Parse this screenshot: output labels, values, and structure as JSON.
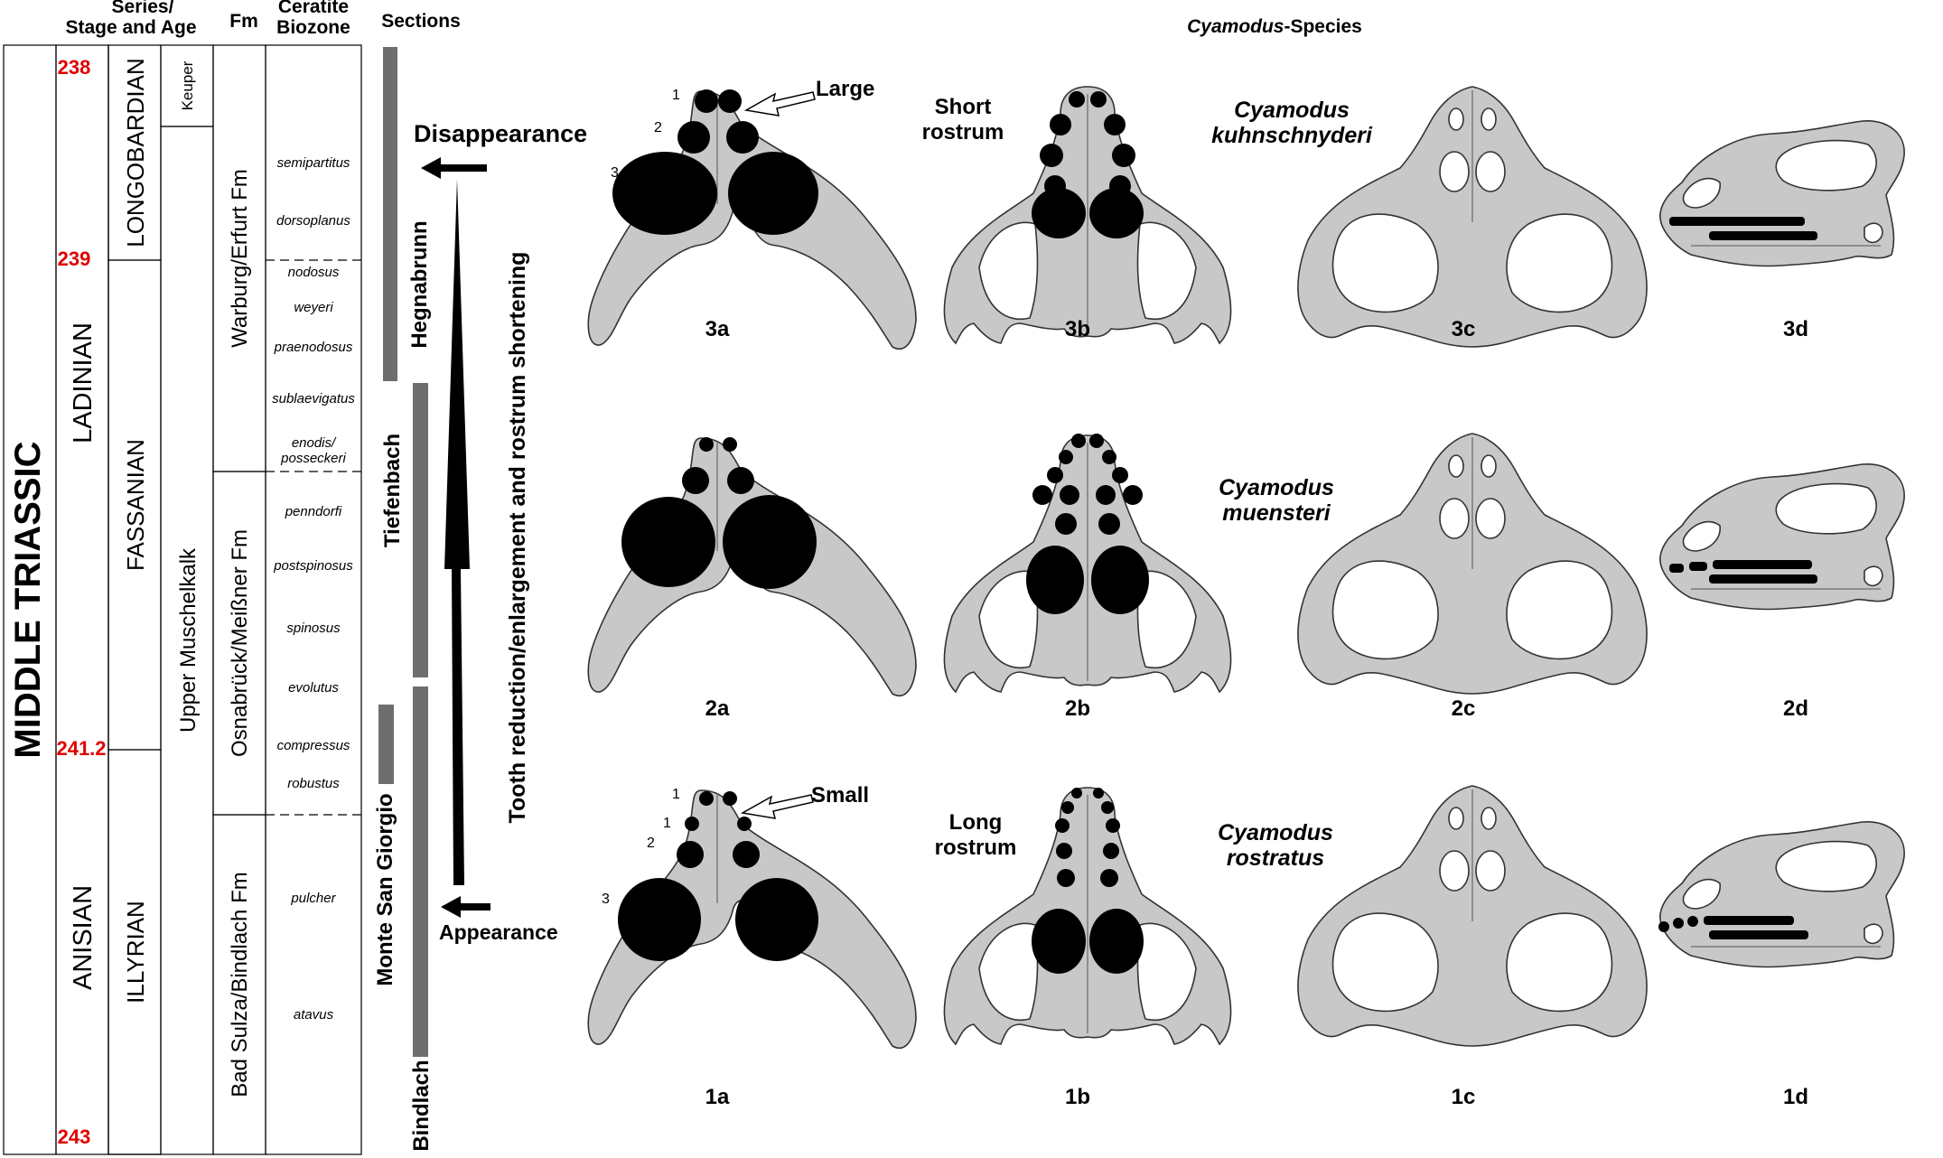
{
  "headers": {
    "series_stage_age": [
      "Series/",
      "Stage and Age"
    ],
    "fm": "Fm",
    "biozone": [
      "Ceratite",
      "Biozone"
    ],
    "sections": "Sections",
    "species_title_italic": "Cyamodus",
    "species_title_rest": "-Species"
  },
  "series": "MIDDLE TRIASSIC",
  "ages": [
    "238",
    "239",
    "241.2",
    "243"
  ],
  "stages": [
    "LADINIAN",
    "ANISIAN"
  ],
  "substages": [
    "LONGOBARDIAN",
    "FASSANIAN",
    "ILLYRIAN"
  ],
  "formations": {
    "keuper": "Keuper",
    "upper_muschelkalk": "Upper Muschelkalk",
    "warburg": "Warburg/Erfurt Fm",
    "osnabrueck": "Osnabrück/Meißner Fm",
    "bad_sulza": "Bad Sulza/Bindlach Fm"
  },
  "biozones": [
    "semipartitus",
    "dorsoplanus",
    "nodosus",
    "weyeri",
    "praenodosus",
    "sublaevigatus",
    "enodis/",
    "posseckeri",
    "penndorfi",
    "postspinosus",
    "spinosus",
    "evolutus",
    "compressus",
    "robustus",
    "pulcher",
    "atavus"
  ],
  "sections": {
    "hegnabrunn": "Hegnabrunn",
    "tiefenbach": "Tiefenbach",
    "monte_san_giorgio": "Monte San Giorgio",
    "bindlach": "Bindlach"
  },
  "trend": {
    "disappearance": "Disappearance",
    "appearance": "Appearance",
    "label": "Tooth reduction/enlargement and rostrum shortening"
  },
  "annotations": {
    "large": "Large",
    "small": "Small",
    "short_rostrum": [
      "Short",
      "rostrum"
    ],
    "long_rostrum": [
      "Long",
      "rostrum"
    ],
    "tooth_numbers_top": [
      "1",
      "2",
      "3"
    ],
    "tooth_numbers_bottom": [
      "1",
      "1",
      "2",
      "3"
    ]
  },
  "species": [
    {
      "genus": "Cyamodus",
      "epithet": "kuhnschnyderi"
    },
    {
      "genus": "Cyamodus",
      "epithet": "muensteri"
    },
    {
      "genus": "Cyamodus",
      "epithet": "rostratus"
    }
  ],
  "panel_labels": [
    [
      "3a",
      "3b",
      "3c",
      "3d"
    ],
    [
      "2a",
      "2b",
      "2c",
      "2d"
    ],
    [
      "1a",
      "1b",
      "1c",
      "1d"
    ]
  ]
}
